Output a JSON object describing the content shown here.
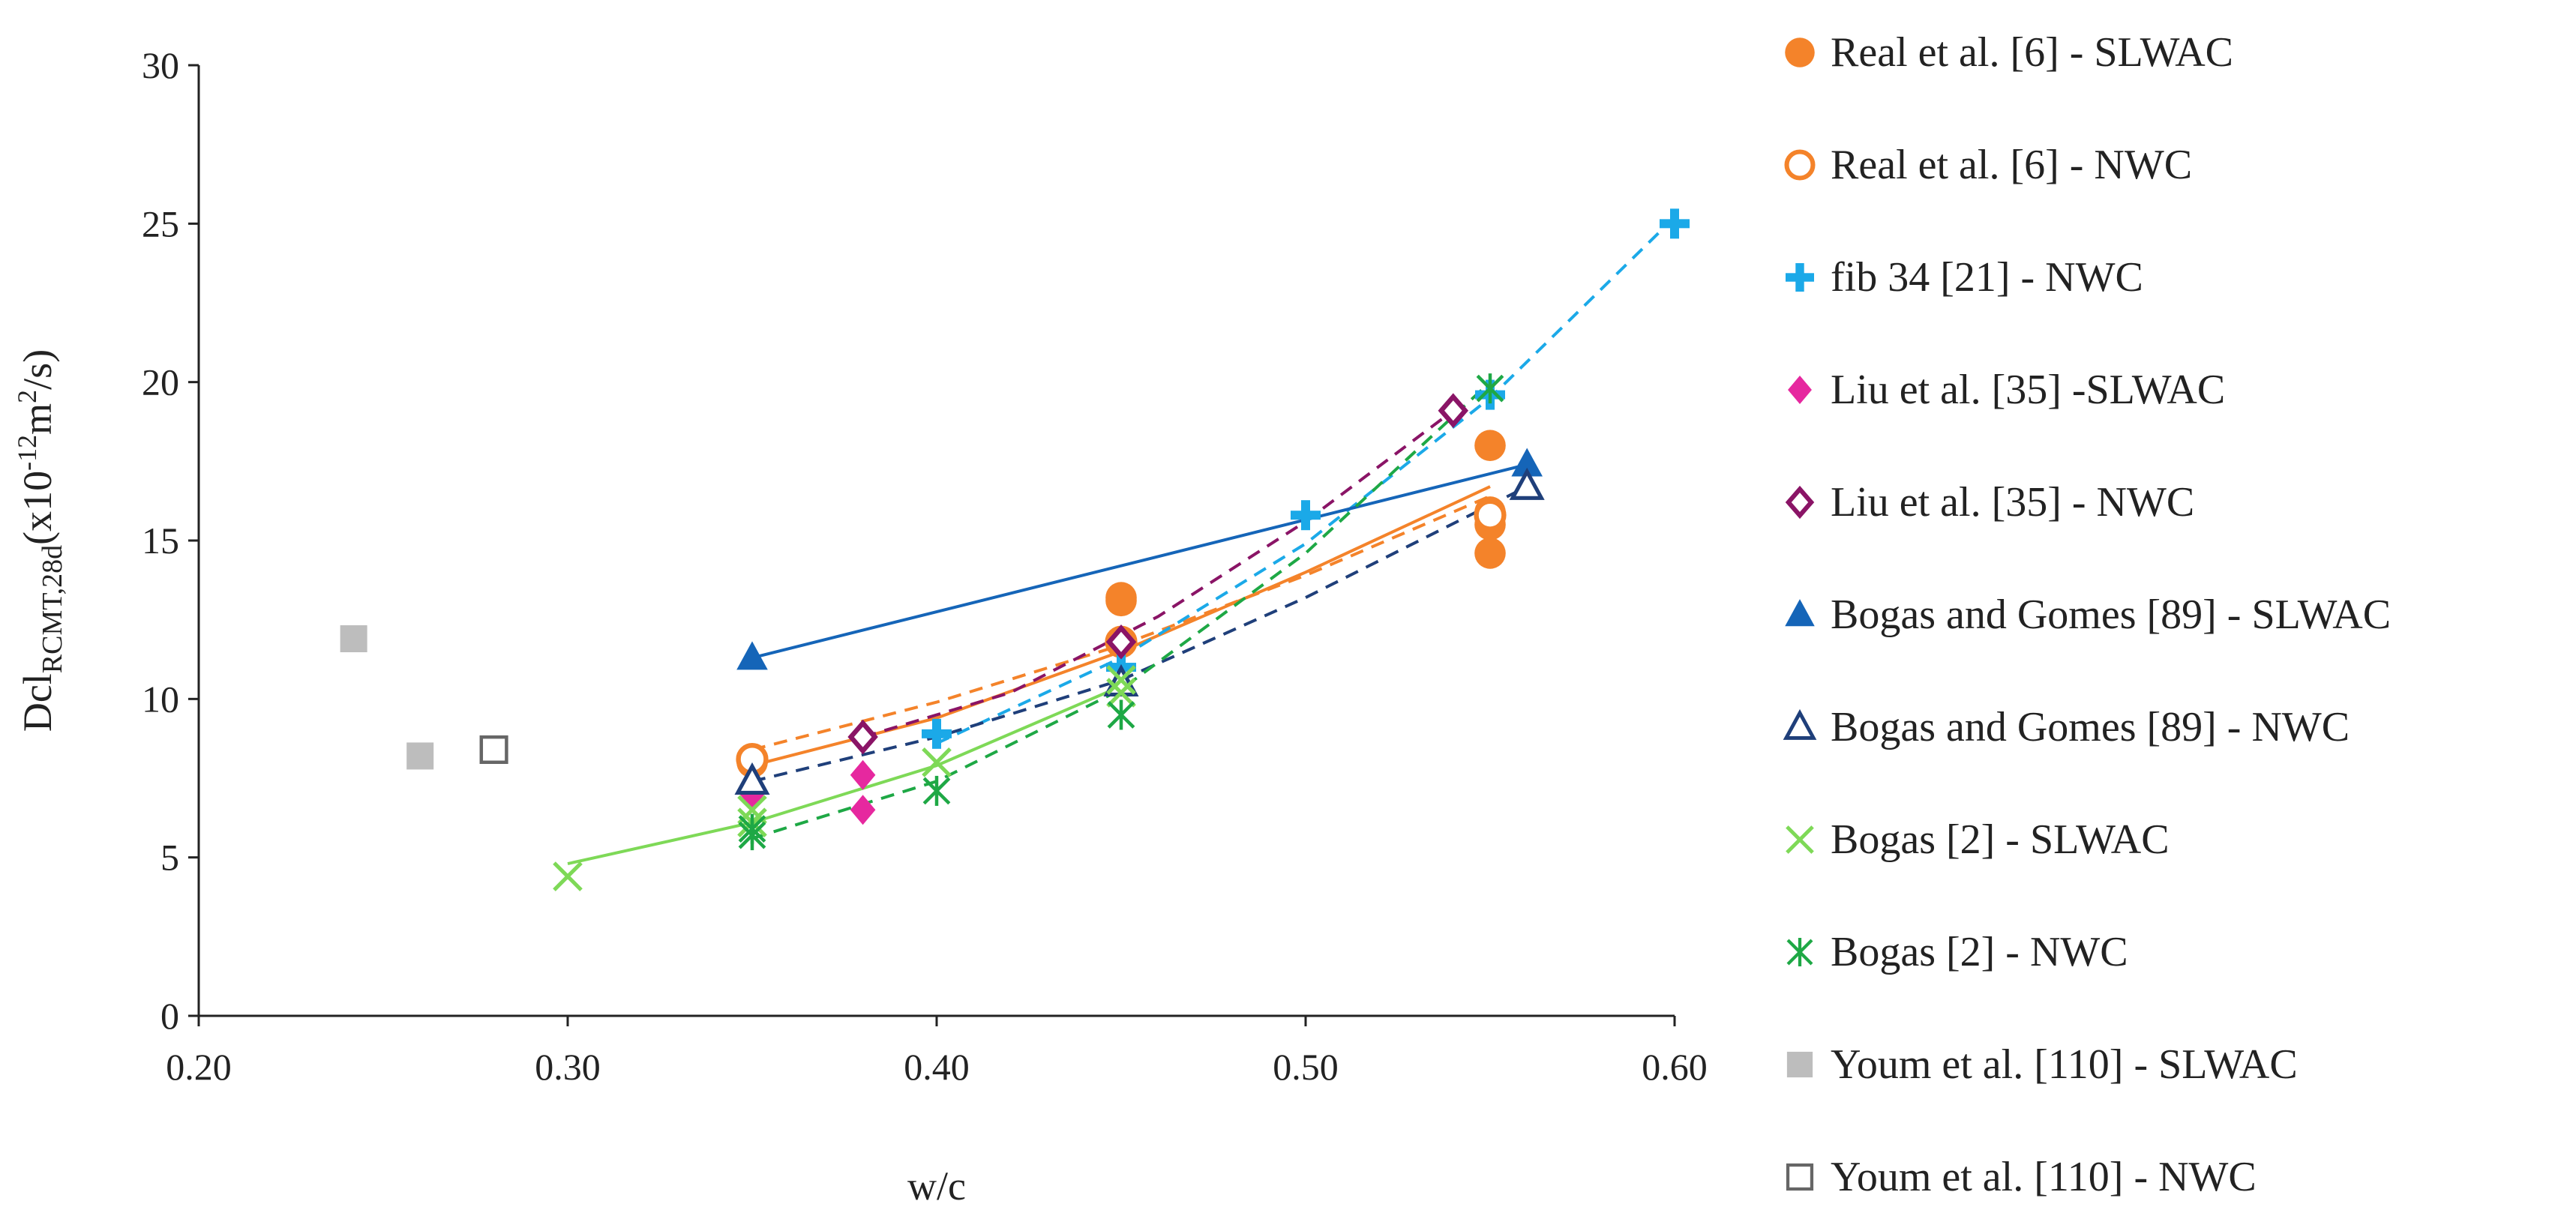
{
  "chart_data": {
    "type": "scatter",
    "title": "",
    "xlabel": "w/c",
    "ylabel": {
      "main": "Dcl",
      "subscript": "RCMT,28d",
      "unit_prefix": "(x10",
      "unit_exp": "-12",
      "unit_mid": "m",
      "unit_exp2": "2",
      "unit_suffix": "/s)"
    },
    "xlim": [
      0.2,
      0.6
    ],
    "ylim": [
      0,
      30
    ],
    "xticks": [
      "0.20",
      "0.30",
      "0.40",
      "0.50",
      "0.60"
    ],
    "yticks": [
      "0",
      "5",
      "10",
      "15",
      "20",
      "25",
      "30"
    ],
    "grid": false,
    "legend_position": "right",
    "series": [
      {
        "name": "Real et al. [6] - SLWAC",
        "color": "#F4832A",
        "marker": "circle-filled",
        "points": [
          [
            0.35,
            8.0
          ],
          [
            0.45,
            13.1
          ],
          [
            0.45,
            13.2
          ],
          [
            0.55,
            18.0
          ],
          [
            0.55,
            15.9
          ],
          [
            0.55,
            15.5
          ],
          [
            0.55,
            14.6
          ]
        ],
        "trend": {
          "style": "solid",
          "points": [
            [
              0.35,
              7.9
            ],
            [
              0.4,
              9.4
            ],
            [
              0.45,
              11.5
            ],
            [
              0.5,
              14.0
            ],
            [
              0.55,
              16.7
            ]
          ]
        }
      },
      {
        "name": "Real et al. [6] - NWC",
        "color": "#F4832A",
        "marker": "circle-open",
        "points": [
          [
            0.35,
            8.1
          ],
          [
            0.45,
            11.8
          ],
          [
            0.55,
            15.8
          ]
        ],
        "trend": {
          "style": "dashed",
          "points": [
            [
              0.35,
              8.4
            ],
            [
              0.4,
              9.9
            ],
            [
              0.45,
              11.7
            ],
            [
              0.5,
              13.9
            ],
            [
              0.55,
              16.4
            ]
          ]
        }
      },
      {
        "name": "fib 34 [21] - NWC",
        "color": "#1BA9E8",
        "marker": "plus",
        "points": [
          [
            0.4,
            8.9
          ],
          [
            0.45,
            11.0
          ],
          [
            0.5,
            15.8
          ],
          [
            0.55,
            19.6
          ],
          [
            0.6,
            25.0
          ]
        ],
        "trend": {
          "style": "dashed",
          "points": [
            [
              0.4,
              8.6
            ],
            [
              0.45,
              11.3
            ],
            [
              0.5,
              14.9
            ],
            [
              0.55,
              19.5
            ],
            [
              0.6,
              25.2
            ]
          ]
        }
      },
      {
        "name": "Liu et al. [35] -SLWAC",
        "color": "#E6289F",
        "marker": "diamond-filled",
        "points": [
          [
            0.35,
            7.0
          ],
          [
            0.38,
            7.6
          ],
          [
            0.38,
            6.5
          ]
        ],
        "trend": null
      },
      {
        "name": "Liu et al. [35] - NWC",
        "color": "#8A1466",
        "marker": "diamond-open",
        "points": [
          [
            0.38,
            8.8
          ],
          [
            0.45,
            11.8
          ],
          [
            0.54,
            19.1
          ]
        ],
        "trend": {
          "style": "dashed",
          "points": [
            [
              0.38,
              8.8
            ],
            [
              0.42,
              10.2
            ],
            [
              0.46,
              12.6
            ],
            [
              0.5,
              15.6
            ],
            [
              0.54,
              19.1
            ]
          ]
        }
      },
      {
        "name": "Bogas and Gomes [89] - SLWAC",
        "color": "#1565B8",
        "marker": "triangle-filled",
        "points": [
          [
            0.35,
            11.3
          ],
          [
            0.56,
            17.4
          ]
        ],
        "trend": {
          "style": "solid",
          "points": [
            [
              0.35,
              11.3
            ],
            [
              0.56,
              17.4
            ]
          ]
        }
      },
      {
        "name": "Bogas and Gomes [89] - NWC",
        "color": "#1F3F7A",
        "marker": "triangle-open",
        "points": [
          [
            0.35,
            7.4
          ],
          [
            0.45,
            10.5
          ],
          [
            0.56,
            16.7
          ]
        ],
        "trend": {
          "style": "dashed",
          "points": [
            [
              0.35,
              7.4
            ],
            [
              0.4,
              8.8
            ],
            [
              0.45,
              10.6
            ],
            [
              0.5,
              13.2
            ],
            [
              0.56,
              16.7
            ]
          ]
        }
      },
      {
        "name": "Bogas [2] - SLWAC",
        "color": "#7ED957",
        "marker": "x",
        "points": [
          [
            0.3,
            4.4
          ],
          [
            0.35,
            6.5
          ],
          [
            0.35,
            6.1
          ],
          [
            0.4,
            8.0
          ],
          [
            0.45,
            10.6
          ],
          [
            0.45,
            10.2
          ]
        ],
        "trend": {
          "style": "solid",
          "points": [
            [
              0.3,
              4.8
            ],
            [
              0.35,
              6.1
            ],
            [
              0.4,
              7.9
            ],
            [
              0.45,
              10.4
            ]
          ]
        }
      },
      {
        "name": "Bogas [2] - NWC",
        "color": "#1EA845",
        "marker": "asterisk",
        "points": [
          [
            0.35,
            5.7
          ],
          [
            0.35,
            5.9
          ],
          [
            0.4,
            7.1
          ],
          [
            0.45,
            9.5
          ],
          [
            0.55,
            19.8
          ]
        ],
        "trend": {
          "style": "dashed",
          "points": [
            [
              0.35,
              5.6
            ],
            [
              0.4,
              7.4
            ],
            [
              0.45,
              10.3
            ],
            [
              0.5,
              14.6
            ],
            [
              0.55,
              20.0
            ]
          ]
        }
      },
      {
        "name": "Youm et al. [110] - SLWAC",
        "color": "#BDBDBD",
        "marker": "square-filled",
        "points": [
          [
            0.242,
            11.9
          ],
          [
            0.26,
            8.2
          ]
        ],
        "trend": null
      },
      {
        "name": "Youm et al. [110] - NWC",
        "color": "#666666",
        "marker": "square-open",
        "points": [
          [
            0.28,
            8.4
          ]
        ],
        "trend": null
      }
    ]
  }
}
